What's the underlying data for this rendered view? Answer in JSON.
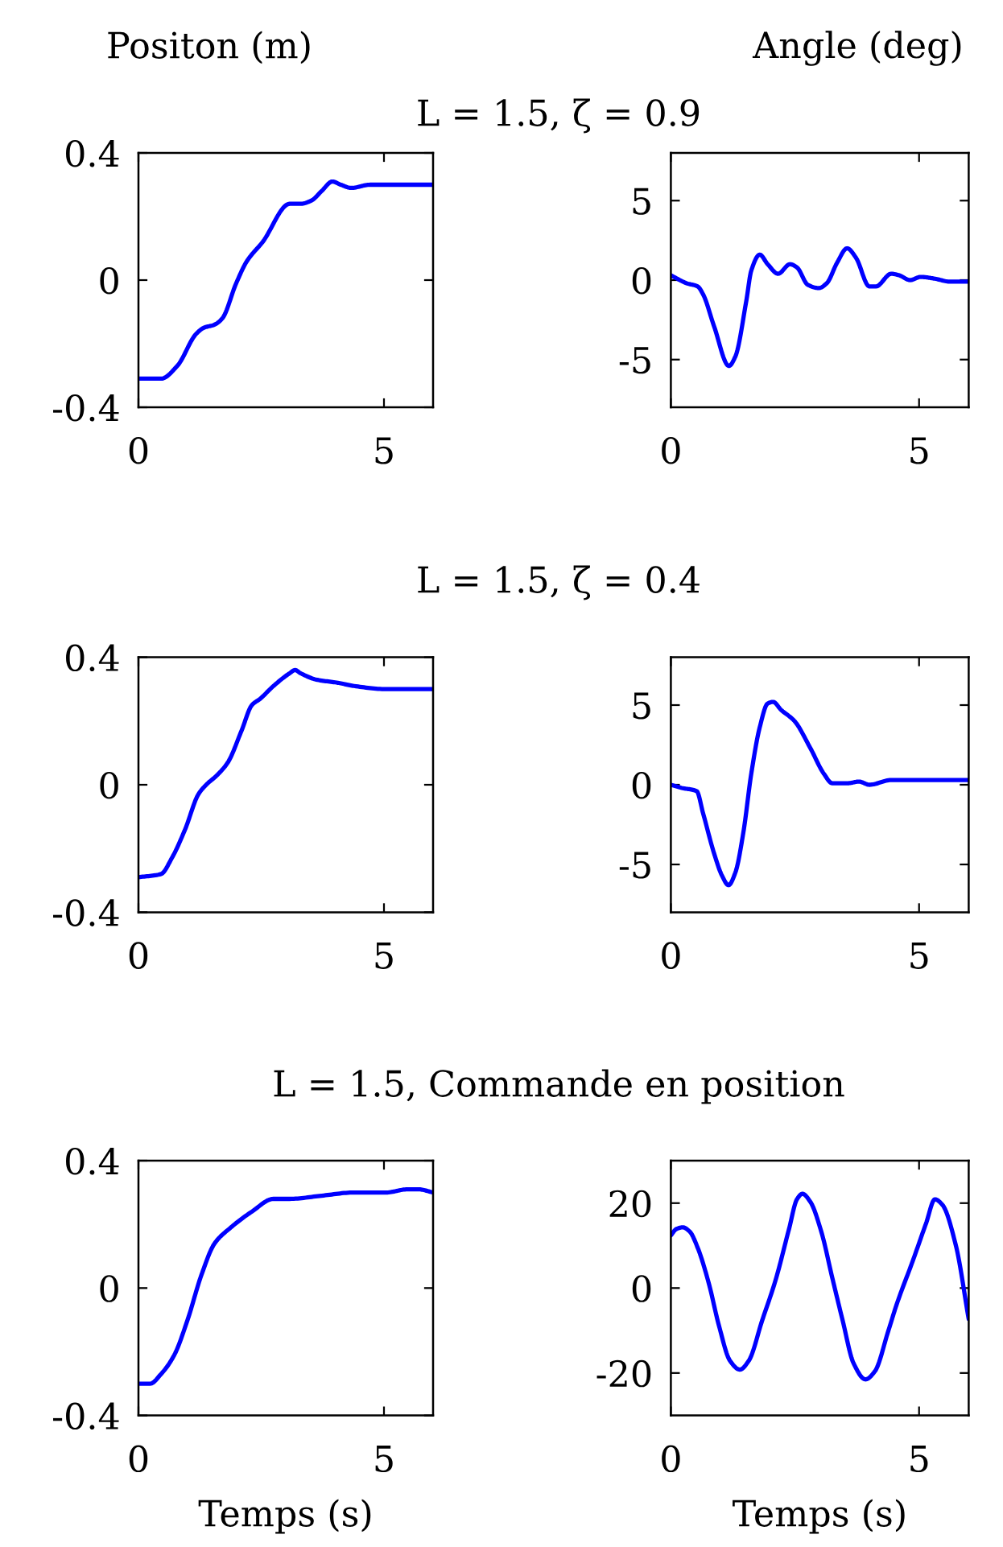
{
  "chart_data": [
    {
      "type": "line",
      "title": "L = 1.5, ζ = 0.9",
      "ylabel": "Positon (m)",
      "color": "#0000ff",
      "xlim": [
        0,
        6
      ],
      "xticks": [
        0,
        5
      ],
      "ylim": [
        -0.4,
        0.4
      ],
      "yticks": [
        -0.4,
        0,
        0.4
      ],
      "x": [
        0,
        0.46,
        0.79,
        1.17,
        1.33,
        1.55,
        1.71,
        1.99,
        2.21,
        2.53,
        3.08,
        3.3,
        3.52,
        3.73,
        3.95,
        4.12,
        4.33,
        4.72,
        5.04,
        6
      ],
      "values": [
        -0.31,
        -0.31,
        -0.27,
        -0.17,
        -0.15,
        -0.14,
        -0.12,
        -0.01,
        0.06,
        0.12,
        0.24,
        0.24,
        0.25,
        0.28,
        0.31,
        0.3,
        0.29,
        0.3,
        0.3,
        0.3
      ]
    },
    {
      "type": "line",
      "ylabel": "Angle (deg)",
      "color": "#0000ff",
      "xlim": [
        0,
        6
      ],
      "xticks": [
        0,
        5
      ],
      "ylim": [
        -8,
        8
      ],
      "yticks": [
        -5,
        0,
        5
      ],
      "x": [
        0,
        0.32,
        0.54,
        0.65,
        0.87,
        1.17,
        1.3,
        1.52,
        1.62,
        1.79,
        1.95,
        2.16,
        2.4,
        2.54,
        2.76,
        2.98,
        3.14,
        3.35,
        3.55,
        3.73,
        4.0,
        4.13,
        4.44,
        4.6,
        4.82,
        5.03,
        5.3,
        5.63,
        6.0
      ],
      "values": [
        0.3,
        -0.2,
        -0.4,
        -0.9,
        -2.9,
        -5.4,
        -4.8,
        -1.3,
        0.6,
        1.6,
        1.0,
        0.4,
        1.0,
        0.8,
        -0.3,
        -0.5,
        -0.2,
        1.1,
        2.0,
        1.4,
        -0.4,
        -0.4,
        0.4,
        0.3,
        0.0,
        0.2,
        0.1,
        -0.1,
        -0.1
      ]
    },
    {
      "type": "line",
      "title": "L = 1.5, ζ = 0.4",
      "color": "#0000ff",
      "xlim": [
        0,
        6
      ],
      "xticks": [
        0,
        5
      ],
      "ylim": [
        -0.4,
        0.4
      ],
      "yticks": [
        -0.4,
        0,
        0.4
      ],
      "x": [
        0,
        0.46,
        0.68,
        0.95,
        1.22,
        1.38,
        1.6,
        1.82,
        2.1,
        2.31,
        2.48,
        2.75,
        3.08,
        3.19,
        3.3,
        3.62,
        4.06,
        4.39,
        5.04,
        6
      ],
      "values": [
        -0.29,
        -0.28,
        -0.23,
        -0.14,
        -0.03,
        0.0,
        0.03,
        0.07,
        0.17,
        0.25,
        0.27,
        0.31,
        0.35,
        0.36,
        0.35,
        0.33,
        0.32,
        0.31,
        0.3,
        0.3
      ]
    },
    {
      "type": "line",
      "color": "#0000ff",
      "xlim": [
        0,
        6
      ],
      "xticks": [
        0,
        5
      ],
      "ylim": [
        -8,
        8
      ],
      "yticks": [
        -5,
        0,
        5
      ],
      "x": [
        0,
        0.22,
        0.52,
        0.65,
        0.87,
        1.03,
        1.16,
        1.3,
        1.46,
        1.62,
        1.79,
        1.95,
        2.06,
        2.22,
        2.49,
        2.81,
        3.08,
        3.25,
        3.57,
        3.79,
        4.0,
        4.44,
        6
      ],
      "values": [
        0.0,
        -0.2,
        -0.4,
        -1.8,
        -4.3,
        -5.7,
        -6.3,
        -5.5,
        -3.0,
        0.7,
        3.6,
        5.1,
        5.2,
        4.7,
        4.0,
        2.3,
        0.7,
        0.1,
        0.1,
        0.2,
        0.0,
        0.3,
        0.3
      ]
    },
    {
      "type": "line",
      "title": "L = 1.5, Commande en position",
      "xlabel": "Temps (s)",
      "color": "#0000ff",
      "xlim": [
        0,
        6
      ],
      "xticks": [
        0,
        5
      ],
      "ylim": [
        -0.4,
        0.4
      ],
      "yticks": [
        -0.4,
        0,
        0.4
      ],
      "x": [
        0,
        0.24,
        0.46,
        0.73,
        1.0,
        1.28,
        1.55,
        1.88,
        2.31,
        2.75,
        3.08,
        3.73,
        4.39,
        5.04,
        5.48,
        5.7,
        6
      ],
      "values": [
        -0.3,
        -0.3,
        -0.27,
        -0.21,
        -0.1,
        0.04,
        0.14,
        0.19,
        0.24,
        0.28,
        0.28,
        0.29,
        0.3,
        0.3,
        0.31,
        0.31,
        0.3
      ]
    },
    {
      "type": "line",
      "xlabel": "Temps (s)",
      "color": "#0000ff",
      "xlim": [
        0,
        6
      ],
      "xticks": [
        0,
        5
      ],
      "ylim": [
        -30,
        30
      ],
      "yticks": [
        -20,
        0,
        20
      ],
      "x": [
        0,
        0.11,
        0.24,
        0.38,
        0.54,
        0.76,
        0.97,
        1.19,
        1.39,
        1.57,
        1.84,
        2.11,
        2.38,
        2.54,
        2.65,
        2.81,
        3.03,
        3.25,
        3.46,
        3.68,
        3.92,
        4.11,
        4.38,
        4.55,
        4.87,
        5.14,
        5.32,
        5.47,
        5.74,
        6.0
      ],
      "values": [
        12.4,
        13.9,
        14.3,
        13.3,
        9.5,
        1.3,
        -8.9,
        -17.1,
        -19.2,
        -17.1,
        -7.6,
        1.9,
        13.9,
        20.9,
        22.2,
        20.3,
        13.3,
        2.5,
        -7.6,
        -17.7,
        -21.5,
        -19.6,
        -10.1,
        -3.8,
        6.3,
        15.2,
        20.9,
        19.6,
        10.1,
        -7.3
      ]
    }
  ]
}
